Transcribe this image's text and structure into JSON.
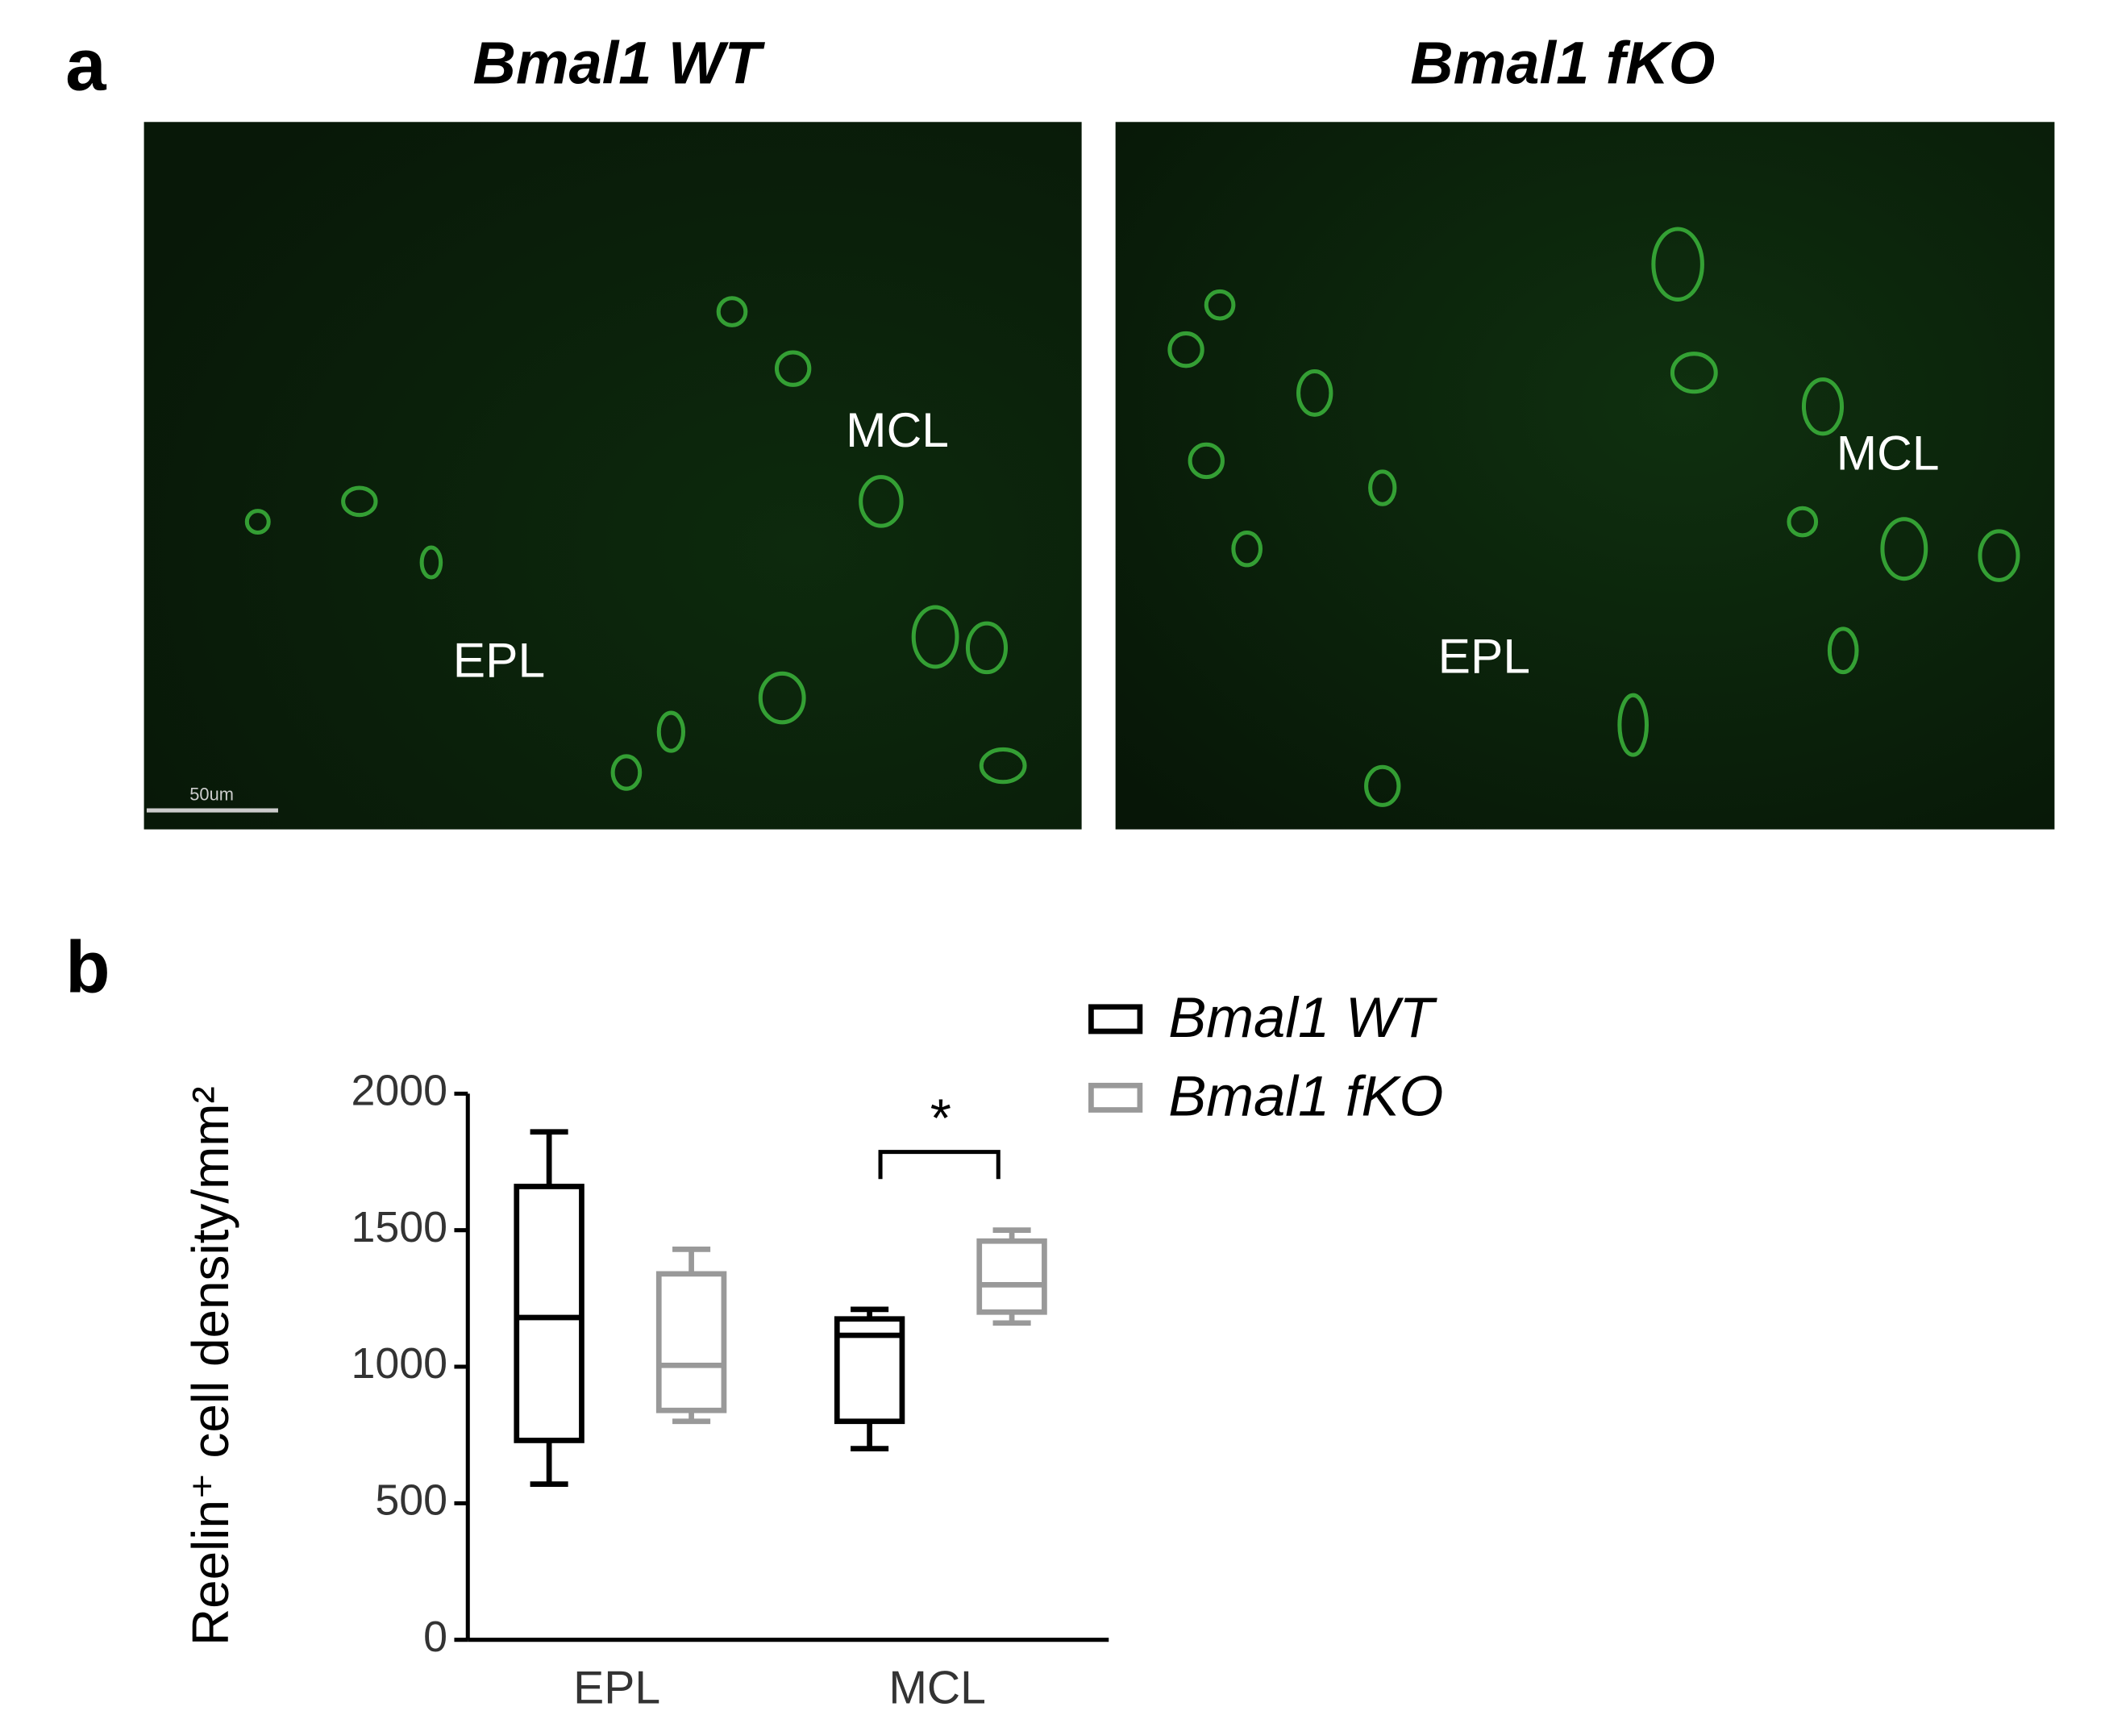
{
  "panel_labels": [
    "a",
    "b"
  ],
  "images": [
    {
      "title": "Bmal1 WT",
      "labels": [
        "MCL",
        "EPL"
      ],
      "scale_bar": "50um"
    },
    {
      "title": "Bmal1 fKO",
      "labels": [
        "MCL",
        "EPL"
      ]
    }
  ],
  "chart_data": {
    "type": "box",
    "ylabel": "Reelin⁺ cell density/mm²",
    "categories": [
      "EPL",
      "MCL"
    ],
    "ylim": [
      0,
      2000
    ],
    "yticks": [
      0,
      500,
      1000,
      1500,
      2000
    ],
    "series": [
      {
        "name": "Bmal1 WT",
        "color": "#000000",
        "min": [
          570,
          700
        ],
        "q1": [
          730,
          800
        ],
        "median": [
          1180,
          1115
        ],
        "q3": [
          1660,
          1175
        ],
        "max": [
          1860,
          1210
        ]
      },
      {
        "name": "Bmal1 fKO",
        "color": "#999999",
        "min": [
          800,
          1160
        ],
        "q1": [
          840,
          1200
        ],
        "median": [
          1005,
          1300
        ],
        "q3": [
          1340,
          1460
        ],
        "max": [
          1430,
          1500
        ]
      }
    ],
    "annotations": [
      "*"
    ]
  }
}
